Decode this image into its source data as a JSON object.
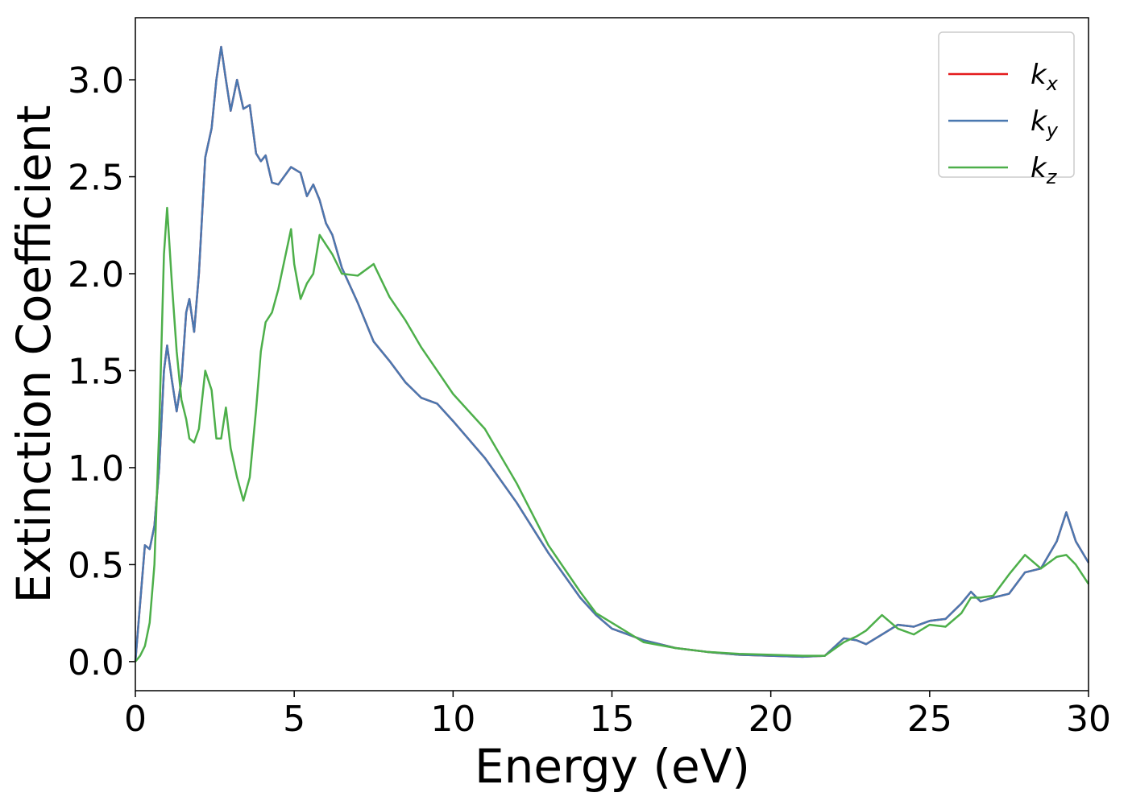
{
  "chart_data": {
    "type": "line",
    "xlabel": "Energy (eV)",
    "ylabel": "Extinction Coefficient",
    "x": [
      0,
      0.15,
      0.3,
      0.45,
      0.6,
      0.75,
      0.9,
      1.0,
      1.15,
      1.3,
      1.45,
      1.6,
      1.7,
      1.85,
      2.0,
      2.2,
      2.4,
      2.55,
      2.7,
      2.85,
      3.0,
      3.2,
      3.4,
      3.6,
      3.8,
      3.95,
      4.1,
      4.3,
      4.5,
      4.9,
      5.0,
      5.2,
      5.4,
      5.6,
      5.8,
      6.0,
      6.2,
      6.5,
      7.0,
      7.5,
      8.0,
      8.5,
      9.0,
      9.5,
      10,
      11,
      12,
      13,
      14,
      14.5,
      15,
      16,
      17,
      18,
      19,
      20,
      21,
      21.7,
      22.3,
      22.7,
      23,
      23.5,
      24,
      24.5,
      25,
      25.5,
      26,
      26.3,
      26.6,
      27,
      27.5,
      28,
      28.5,
      29,
      29.3,
      29.6,
      30
    ],
    "series": [
      {
        "name": "kx",
        "color": "#e41a1c",
        "values": [
          0,
          0.3,
          0.6,
          0.58,
          0.7,
          1.0,
          1.5,
          1.63,
          1.45,
          1.29,
          1.45,
          1.8,
          1.87,
          1.7,
          2.0,
          2.6,
          2.75,
          3.0,
          3.17,
          3.0,
          2.84,
          3.0,
          2.85,
          2.87,
          2.62,
          2.58,
          2.61,
          2.47,
          2.46,
          2.55,
          2.54,
          2.52,
          2.4,
          2.46,
          2.38,
          2.26,
          2.2,
          2.03,
          1.85,
          1.65,
          1.55,
          1.44,
          1.36,
          1.33,
          1.24,
          1.05,
          0.82,
          0.56,
          0.33,
          0.24,
          0.17,
          0.11,
          0.07,
          0.05,
          0.035,
          0.03,
          0.025,
          0.03,
          0.12,
          0.11,
          0.09,
          0.14,
          0.19,
          0.18,
          0.21,
          0.22,
          0.3,
          0.36,
          0.31,
          0.33,
          0.35,
          0.46,
          0.48,
          0.62,
          0.77,
          0.62,
          0.51
        ]
      },
      {
        "name": "ky",
        "color": "#4a78b0",
        "values": [
          0,
          0.3,
          0.6,
          0.58,
          0.7,
          1.0,
          1.5,
          1.63,
          1.45,
          1.29,
          1.45,
          1.8,
          1.87,
          1.7,
          2.0,
          2.6,
          2.75,
          3.0,
          3.17,
          3.0,
          2.84,
          3.0,
          2.85,
          2.87,
          2.62,
          2.58,
          2.61,
          2.47,
          2.46,
          2.55,
          2.54,
          2.52,
          2.4,
          2.46,
          2.38,
          2.26,
          2.2,
          2.03,
          1.85,
          1.65,
          1.55,
          1.44,
          1.36,
          1.33,
          1.24,
          1.05,
          0.82,
          0.56,
          0.33,
          0.24,
          0.17,
          0.11,
          0.07,
          0.05,
          0.035,
          0.03,
          0.025,
          0.03,
          0.12,
          0.11,
          0.09,
          0.14,
          0.19,
          0.18,
          0.21,
          0.22,
          0.3,
          0.36,
          0.31,
          0.33,
          0.35,
          0.46,
          0.48,
          0.62,
          0.77,
          0.62,
          0.51
        ]
      },
      {
        "name": "kz",
        "color": "#4daf4a",
        "values": [
          0,
          0.03,
          0.08,
          0.2,
          0.5,
          1.2,
          2.1,
          2.34,
          1.95,
          1.6,
          1.35,
          1.25,
          1.15,
          1.13,
          1.2,
          1.5,
          1.4,
          1.15,
          1.15,
          1.31,
          1.1,
          0.95,
          0.83,
          0.95,
          1.3,
          1.6,
          1.75,
          1.8,
          1.92,
          2.23,
          2.05,
          1.87,
          1.95,
          2.0,
          2.2,
          2.15,
          2.1,
          2.0,
          1.99,
          2.05,
          1.88,
          1.76,
          1.62,
          1.5,
          1.38,
          1.2,
          0.92,
          0.6,
          0.36,
          0.25,
          0.2,
          0.1,
          0.07,
          0.05,
          0.04,
          0.035,
          0.03,
          0.03,
          0.1,
          0.13,
          0.16,
          0.24,
          0.17,
          0.14,
          0.19,
          0.18,
          0.25,
          0.33,
          0.33,
          0.34,
          0.45,
          0.55,
          0.48,
          0.54,
          0.55,
          0.5,
          0.4
        ]
      }
    ],
    "xlim": [
      0,
      30
    ],
    "xticks": [
      0,
      5,
      10,
      15,
      20,
      25,
      30
    ],
    "ylim": [
      -0.15,
      3.32
    ],
    "yticks": [
      {
        "value": 0,
        "label": "0.0"
      },
      0.5,
      {
        "value": 1,
        "label": "1.0"
      },
      1.5,
      {
        "value": 2,
        "label": "2.0"
      },
      2.5,
      {
        "value": 3,
        "label": "3.0"
      }
    ],
    "legend": "upper right",
    "grid": false
  }
}
